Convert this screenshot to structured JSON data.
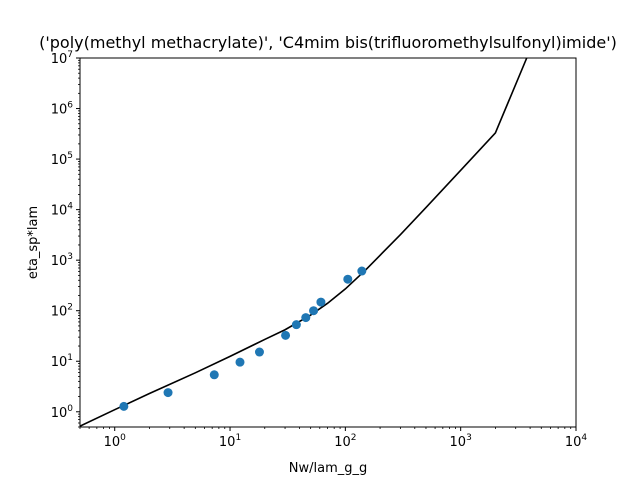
{
  "chart_data": {
    "type": "scatter",
    "title": "('poly(methyl methacrylate)', 'C4mim bis(trifluoromethylsulfonyl)imide')",
    "xlabel": "Nw/lam_g_g",
    "ylabel": "eta_sp*lam",
    "xscale": "log",
    "yscale": "log",
    "xlim": [
      0.5,
      10000
    ],
    "ylim": [
      0.5,
      10000000
    ],
    "grid": false,
    "x_ticks": [
      {
        "base": "10",
        "exp": "0",
        "value": 1
      },
      {
        "base": "10",
        "exp": "1",
        "value": 10
      },
      {
        "base": "10",
        "exp": "2",
        "value": 100
      },
      {
        "base": "10",
        "exp": "3",
        "value": 1000
      },
      {
        "base": "10",
        "exp": "4",
        "value": 10000
      }
    ],
    "y_ticks": [
      {
        "base": "10",
        "exp": "0",
        "value": 1
      },
      {
        "base": "10",
        "exp": "1",
        "value": 10
      },
      {
        "base": "10",
        "exp": "2",
        "value": 100
      },
      {
        "base": "10",
        "exp": "3",
        "value": 1000
      },
      {
        "base": "10",
        "exp": "4",
        "value": 10000
      },
      {
        "base": "10",
        "exp": "5",
        "value": 100000
      },
      {
        "base": "10",
        "exp": "6",
        "value": 1000000
      },
      {
        "base": "10",
        "exp": "7",
        "value": 10000000
      }
    ],
    "points": {
      "color": "#1f77b4",
      "x": [
        1.2,
        2.9,
        7.3,
        12.2,
        18.0,
        30.3,
        37.6,
        45.4,
        53.0,
        61.4,
        105.0,
        139.0
      ],
      "y": [
        1.28,
        2.4,
        5.4,
        9.6,
        15.2,
        32.5,
        53.0,
        73.0,
        100.0,
        148.0,
        420.0,
        610.0
      ]
    },
    "curve": {
      "color": "#000000",
      "x": [
        0.5,
        1,
        2,
        5,
        10,
        20,
        30,
        50,
        70,
        100,
        150,
        200,
        300,
        500,
        1000,
        2000,
        3740
      ],
      "y": [
        0.52,
        1.1,
        2.3,
        5.9,
        12.5,
        27,
        42,
        82,
        140,
        270,
        640,
        1250,
        3200,
        11000,
        60000,
        330000,
        10000000
      ]
    }
  }
}
